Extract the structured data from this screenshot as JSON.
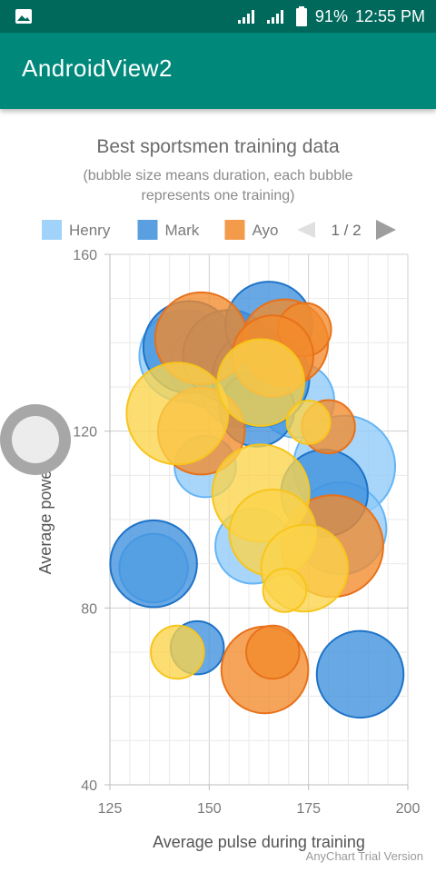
{
  "status_bar": {
    "battery": "91%",
    "time": "12:55 PM",
    "icons": [
      "image-icon",
      "signal-icon",
      "signal-icon",
      "battery-icon"
    ]
  },
  "app_bar": {
    "title": "AndroidView2"
  },
  "chart_data": {
    "type": "scatter",
    "title": "Best sportsmen training data",
    "subtitle_lines": [
      "(bubble size means duration, each bubble",
      "represents one training)"
    ],
    "xlabel": "Average pulse during training",
    "ylabel": "Average power",
    "xlim": [
      125,
      200
    ],
    "ylim": [
      40,
      160
    ],
    "x_ticks": [
      125,
      150,
      175,
      200
    ],
    "y_ticks": [
      40,
      80,
      120,
      160
    ],
    "grid": true,
    "legend_position": "top",
    "legend_page": "1 / 2",
    "series": [
      {
        "name": "Henry",
        "color": "#90caf9",
        "stroke": "#64b5f6",
        "points": [
          {
            "x": 144,
            "y": 137,
            "size": 9
          },
          {
            "x": 151,
            "y": 135,
            "size": 8
          },
          {
            "x": 158,
            "y": 130,
            "size": 7
          },
          {
            "x": 172,
            "y": 127,
            "size": 6
          },
          {
            "x": 184,
            "y": 112,
            "size": 11
          },
          {
            "x": 149,
            "y": 112,
            "size": 4
          },
          {
            "x": 161,
            "y": 94,
            "size": 6
          },
          {
            "x": 136,
            "y": 89,
            "size": 5
          },
          {
            "x": 183,
            "y": 98,
            "size": 9
          }
        ]
      },
      {
        "name": "Mark",
        "color": "#3d8fdc",
        "stroke": "#1e73c8",
        "points": [
          {
            "x": 145,
            "y": 139,
            "size": 9
          },
          {
            "x": 155,
            "y": 137,
            "size": 9
          },
          {
            "x": 163,
            "y": 132,
            "size": 10
          },
          {
            "x": 165,
            "y": 144,
            "size": 8
          },
          {
            "x": 179,
            "y": 106,
            "size": 8
          },
          {
            "x": 136,
            "y": 90,
            "size": 8
          },
          {
            "x": 147,
            "y": 71,
            "size": 3
          },
          {
            "x": 188,
            "y": 65,
            "size": 8
          },
          {
            "x": 162,
            "y": 125,
            "size": 6
          }
        ]
      },
      {
        "name": "Ayo",
        "color": "#f28a2c",
        "stroke": "#e8711a",
        "points": [
          {
            "x": 148,
            "y": 141,
            "size": 9
          },
          {
            "x": 169,
            "y": 140,
            "size": 8
          },
          {
            "x": 174,
            "y": 143,
            "size": 3
          },
          {
            "x": 166,
            "y": 137,
            "size": 7
          },
          {
            "x": 148,
            "y": 120,
            "size": 8
          },
          {
            "x": 181,
            "y": 94,
            "size": 11
          },
          {
            "x": 164,
            "y": 66,
            "size": 8
          },
          {
            "x": 166,
            "y": 70,
            "size": 3
          },
          {
            "x": 180,
            "y": 121,
            "size": 3
          }
        ]
      },
      {
        "name": "",
        "color": "#fbd449",
        "stroke": "#f7c51c",
        "points": [
          {
            "x": 142,
            "y": 124,
            "size": 11
          },
          {
            "x": 163,
            "y": 131,
            "size": 8
          },
          {
            "x": 163,
            "y": 106,
            "size": 10
          },
          {
            "x": 166,
            "y": 97,
            "size": 8
          },
          {
            "x": 174,
            "y": 89,
            "size": 8
          },
          {
            "x": 169,
            "y": 84,
            "size": 2
          },
          {
            "x": 175,
            "y": 122,
            "size": 2
          },
          {
            "x": 142,
            "y": 70,
            "size": 3
          }
        ]
      }
    ]
  },
  "watermark": "AnyChart Trial Version"
}
